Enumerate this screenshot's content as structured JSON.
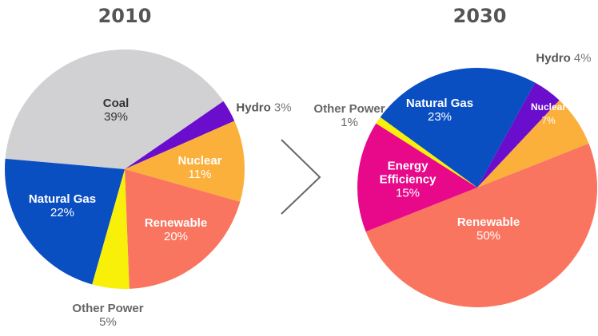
{
  "chart_data": [
    {
      "type": "pie",
      "title": "2010",
      "categories": [
        "Coal",
        "Hydro",
        "Nuclear",
        "Renewable",
        "Other Power",
        "Natural Gas"
      ],
      "values": [
        39,
        3,
        11,
        20,
        5,
        22
      ],
      "value_labels": [
        "39%",
        "3%",
        "11%",
        "20%",
        "5%",
        "22%"
      ],
      "colors": [
        "#d1d1d3",
        "#6a0dcc",
        "#fbb03b",
        "#fa7560",
        "#f9f00a",
        "#0a4fc2"
      ]
    },
    {
      "type": "pie",
      "title": "2030",
      "categories": [
        "Natural Gas",
        "Hydro",
        "Nuclear",
        "Renewable",
        "Energy Efficiency",
        "Other Power"
      ],
      "values": [
        23,
        4,
        7,
        50,
        15,
        1
      ],
      "value_labels": [
        "23%",
        "4%",
        "7%",
        "50%",
        "15%",
        "1%"
      ],
      "colors": [
        "#0a4fc2",
        "#6a0dcc",
        "#fbb03b",
        "#fa7560",
        "#e8098a",
        "#f9f00a"
      ]
    }
  ]
}
